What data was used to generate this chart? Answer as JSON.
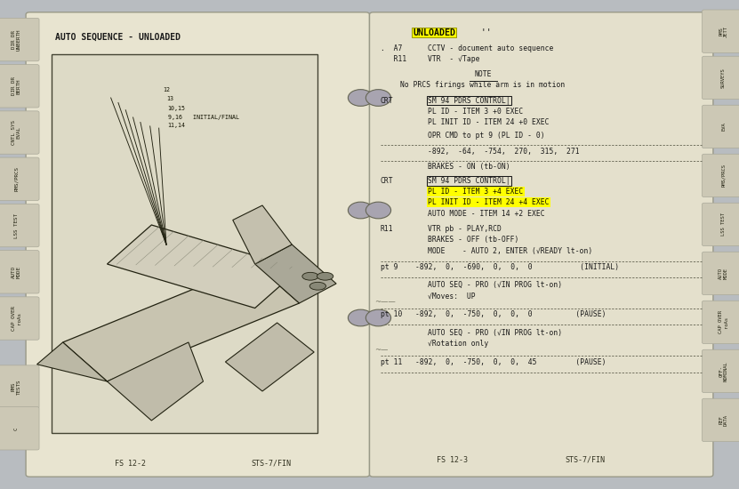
{
  "bg_color": "#b8bcc0",
  "page_left_color": "#e8e4d0",
  "page_right_color": "#e4e0cc",
  "highlight_yellow": "#ffff00",
  "text_color": "#1a1a1a",
  "left_title": "AUTO SEQUENCE - UNLOADED",
  "left_footer_l": "FS 12-2",
  "left_footer_r": "STS-7/FIN",
  "right_footer_l": "FS 12-3",
  "right_footer_r": "STS-7/FIN",
  "right_tabs": [
    "RMS\nJETT",
    "SURVEYS",
    "EVA",
    "RMS/PRCS",
    "LSS TEST",
    "AUTO\nMODE",
    "CAP OVER\nroAs",
    "OFF-\nNOMINAL",
    "REF\nDATA"
  ],
  "left_tabs": [
    "DIR DR\nUNBERTH",
    "DIR DR\nBERTH",
    "CNTL SYS\nEVAL",
    "RMS/PRCS",
    "LSS TEST",
    "AUTO\nMODE",
    "CAP OVER\nroAs",
    "RMS\nTESTS",
    "C"
  ]
}
